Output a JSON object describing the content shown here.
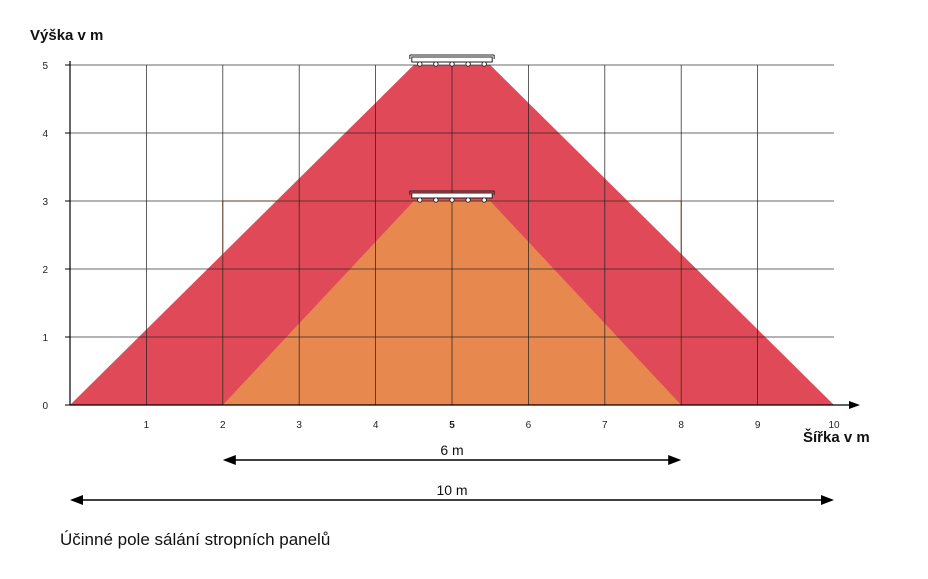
{
  "chart_data": {
    "type": "area",
    "ylabel": "Výška v m",
    "xlabel": "Šířka v m",
    "xlim": [
      0,
      10
    ],
    "ylim": [
      0,
      5
    ],
    "x_ticks": [
      1,
      2,
      3,
      4,
      5,
      6,
      7,
      8,
      9,
      10
    ],
    "y_ticks": [
      0,
      1,
      2,
      3,
      4,
      5
    ],
    "grid": true,
    "zones": [
      {
        "panel_height": 5,
        "footprint": [
          0,
          10
        ],
        "panel_span": [
          4.5,
          5.5
        ],
        "color": "#e04a58"
      },
      {
        "panel_height": 3,
        "footprint": [
          2,
          8
        ],
        "panel_span": [
          4.5,
          5.5
        ],
        "color": "#e7884f"
      }
    ],
    "dimensions": [
      {
        "label": "6 m",
        "from": 2,
        "to": 8
      },
      {
        "label": "10 m",
        "from": 0,
        "to": 10
      }
    ],
    "caption": "Účinné pole sálání stropních panelů"
  },
  "colors": {
    "grid": "#222222",
    "zone_outer": "#e04a58",
    "zone_inner": "#e7884f",
    "inner_frame": "#e0641e"
  },
  "icons": [
    "ceiling-panel-icon"
  ]
}
